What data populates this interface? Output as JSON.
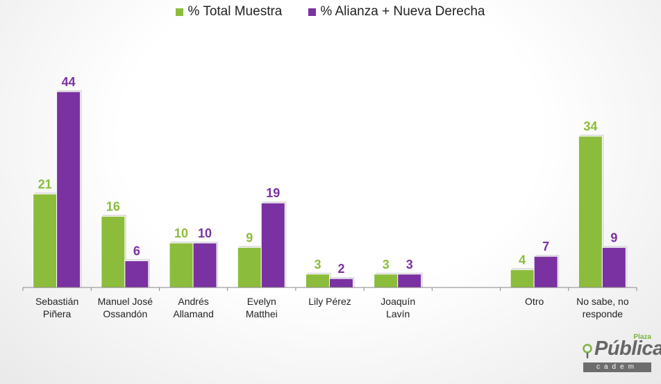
{
  "colors": {
    "series1": "#8cbc3c",
    "series2": "#7a31a1"
  },
  "legend": [
    {
      "label": "% Total Muestra",
      "color": "#8cbc3c"
    },
    {
      "label": "% Alianza + Nueva Derecha",
      "color": "#7a31a1"
    }
  ],
  "chart_data": {
    "type": "bar",
    "categories": [
      [
        "Sebastián",
        "Piñera"
      ],
      [
        "Manuel José",
        "Ossandón"
      ],
      [
        "Andrés",
        "Allamand"
      ],
      [
        "Evelyn",
        "Matthei"
      ],
      [
        "Lily Pérez"
      ],
      [
        "Joaquín",
        "Lavín"
      ],
      [],
      [
        "Otro"
      ],
      [
        "No sabe, no",
        "responde"
      ]
    ],
    "series": [
      {
        "name": "% Total Muestra",
        "values": [
          21,
          16,
          10,
          9,
          3,
          3,
          null,
          4,
          34
        ]
      },
      {
        "name": "% Alianza + Nueva Derecha",
        "values": [
          44,
          6,
          10,
          19,
          2,
          3,
          null,
          7,
          9
        ]
      }
    ],
    "ylim": [
      0,
      44
    ],
    "grid": false,
    "legend_position": "top"
  },
  "logo": {
    "small": "Plaza",
    "word": "Pública",
    "bar": "cadem"
  }
}
